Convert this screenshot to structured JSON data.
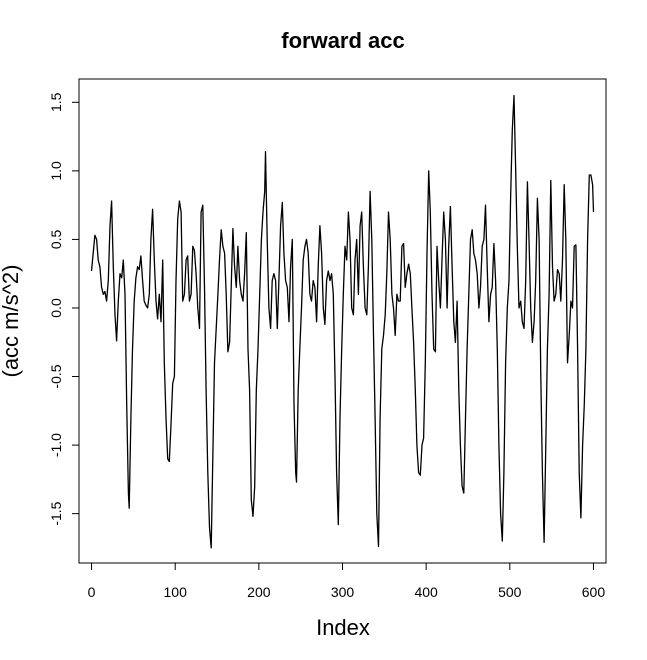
{
  "chart_data": {
    "type": "line",
    "title": "forward acc",
    "xlabel": "Index",
    "ylabel": "(acc m/s^2)",
    "xlim": [
      -15,
      615
    ],
    "ylim": [
      -1.86,
      1.67
    ],
    "xticks": [
      0,
      100,
      200,
      300,
      400,
      500,
      600
    ],
    "yticks": [
      -1.5,
      -1.0,
      -0.5,
      0.0,
      0.5,
      1.0,
      1.5
    ],
    "xtick_labels": [
      "0",
      "100",
      "200",
      "300",
      "400",
      "500",
      "600"
    ],
    "ytick_labels": [
      "-1.5",
      "-1.0",
      "-0.5",
      "0.0",
      "0.5",
      "1.0",
      "1.5"
    ],
    "grid": false,
    "line_color": "#000000",
    "series": [
      {
        "points": [
          [
            0,
            0.27
          ],
          [
            2,
            0.4
          ],
          [
            4,
            0.53
          ],
          [
            6,
            0.5
          ],
          [
            8,
            0.35
          ],
          [
            10,
            0.3
          ],
          [
            12,
            0.15
          ],
          [
            14,
            0.1
          ],
          [
            16,
            0.12
          ],
          [
            18,
            0.05
          ],
          [
            20,
            0.2
          ],
          [
            22,
            0.6
          ],
          [
            24,
            0.78
          ],
          [
            26,
            0.3
          ],
          [
            28,
            -0.05
          ],
          [
            30,
            -0.24
          ],
          [
            32,
            0.05
          ],
          [
            34,
            0.25
          ],
          [
            36,
            0.22
          ],
          [
            38,
            0.35
          ],
          [
            40,
            0.1
          ],
          [
            42,
            -0.7
          ],
          [
            44,
            -1.35
          ],
          [
            45,
            -1.46
          ],
          [
            47,
            -0.8
          ],
          [
            49,
            -0.3
          ],
          [
            51,
            0.05
          ],
          [
            53,
            0.22
          ],
          [
            55,
            0.3
          ],
          [
            57,
            0.28
          ],
          [
            59,
            0.38
          ],
          [
            61,
            0.2
          ],
          [
            63,
            0.05
          ],
          [
            65,
            0.02
          ],
          [
            67,
            0.0
          ],
          [
            69,
            0.1
          ],
          [
            71,
            0.5
          ],
          [
            73,
            0.72
          ],
          [
            75,
            0.35
          ],
          [
            77,
            0.05
          ],
          [
            79,
            -0.08
          ],
          [
            81,
            0.1
          ],
          [
            83,
            -0.1
          ],
          [
            85,
            0.35
          ],
          [
            87,
            -0.4
          ],
          [
            89,
            -0.8
          ],
          [
            91,
            -1.1
          ],
          [
            93,
            -1.12
          ],
          [
            95,
            -0.85
          ],
          [
            97,
            -0.55
          ],
          [
            99,
            -0.5
          ],
          [
            101,
            0.2
          ],
          [
            103,
            0.65
          ],
          [
            105,
            0.78
          ],
          [
            107,
            0.7
          ],
          [
            109,
            0.05
          ],
          [
            111,
            0.1
          ],
          [
            113,
            0.35
          ],
          [
            115,
            0.38
          ],
          [
            117,
            0.05
          ],
          [
            119,
            0.1
          ],
          [
            121,
            0.45
          ],
          [
            123,
            0.42
          ],
          [
            125,
            0.25
          ],
          [
            127,
            0.0
          ],
          [
            129,
            -0.15
          ],
          [
            131,
            0.7
          ],
          [
            133,
            0.75
          ],
          [
            135,
            0.15
          ],
          [
            137,
            -0.6
          ],
          [
            139,
            -1.2
          ],
          [
            141,
            -1.6
          ],
          [
            143,
            -1.75
          ],
          [
            145,
            -1.1
          ],
          [
            147,
            -0.4
          ],
          [
            149,
            -0.15
          ],
          [
            151,
            0.1
          ],
          [
            153,
            0.35
          ],
          [
            155,
            0.57
          ],
          [
            157,
            0.45
          ],
          [
            159,
            0.4
          ],
          [
            161,
            0.1
          ],
          [
            163,
            -0.32
          ],
          [
            165,
            -0.25
          ],
          [
            167,
            0.15
          ],
          [
            169,
            0.58
          ],
          [
            171,
            0.3
          ],
          [
            173,
            0.15
          ],
          [
            175,
            0.45
          ],
          [
            177,
            0.2
          ],
          [
            179,
            0.1
          ],
          [
            181,
            0.05
          ],
          [
            183,
            0.25
          ],
          [
            185,
            0.55
          ],
          [
            187,
            -0.3
          ],
          [
            189,
            -0.6
          ],
          [
            191,
            -1.4
          ],
          [
            193,
            -1.52
          ],
          [
            195,
            -1.3
          ],
          [
            197,
            -0.6
          ],
          [
            199,
            -0.3
          ],
          [
            201,
            0.1
          ],
          [
            203,
            0.5
          ],
          [
            205,
            0.7
          ],
          [
            207,
            0.85
          ],
          [
            208,
            1.14
          ],
          [
            210,
            0.5
          ],
          [
            212,
            0.0
          ],
          [
            214,
            -0.15
          ],
          [
            216,
            0.2
          ],
          [
            218,
            0.25
          ],
          [
            220,
            0.2
          ],
          [
            222,
            -0.15
          ],
          [
            224,
            0.2
          ],
          [
            226,
            0.6
          ],
          [
            228,
            0.77
          ],
          [
            230,
            0.4
          ],
          [
            232,
            0.2
          ],
          [
            234,
            0.15
          ],
          [
            236,
            -0.1
          ],
          [
            238,
            0.3
          ],
          [
            240,
            0.5
          ],
          [
            242,
            -0.7
          ],
          [
            244,
            -1.2
          ],
          [
            245,
            -1.27
          ],
          [
            247,
            -0.6
          ],
          [
            249,
            -0.3
          ],
          [
            251,
            0.0
          ],
          [
            253,
            0.35
          ],
          [
            255,
            0.45
          ],
          [
            257,
            0.5
          ],
          [
            259,
            0.4
          ],
          [
            261,
            0.1
          ],
          [
            263,
            0.05
          ],
          [
            265,
            0.2
          ],
          [
            267,
            0.15
          ],
          [
            269,
            -0.1
          ],
          [
            271,
            0.3
          ],
          [
            273,
            0.6
          ],
          [
            275,
            0.4
          ],
          [
            277,
            0.0
          ],
          [
            279,
            -0.12
          ],
          [
            281,
            0.2
          ],
          [
            283,
            0.27
          ],
          [
            285,
            0.2
          ],
          [
            287,
            0.25
          ],
          [
            289,
            0.1
          ],
          [
            291,
            -0.5
          ],
          [
            293,
            -1.2
          ],
          [
            295,
            -1.58
          ],
          [
            297,
            -0.8
          ],
          [
            299,
            -0.3
          ],
          [
            301,
            0.1
          ],
          [
            303,
            0.45
          ],
          [
            305,
            0.35
          ],
          [
            307,
            0.7
          ],
          [
            309,
            0.5
          ],
          [
            311,
            0.0
          ],
          [
            313,
            -0.05
          ],
          [
            315,
            0.35
          ],
          [
            317,
            0.5
          ],
          [
            319,
            0.1
          ],
          [
            321,
            0.6
          ],
          [
            323,
            0.7
          ],
          [
            325,
            0.3
          ],
          [
            327,
            0.0
          ],
          [
            329,
            -0.05
          ],
          [
            331,
            0.3
          ],
          [
            333,
            0.85
          ],
          [
            335,
            0.5
          ],
          [
            337,
            -0.2
          ],
          [
            339,
            -0.8
          ],
          [
            341,
            -1.5
          ],
          [
            343,
            -1.74
          ],
          [
            345,
            -0.8
          ],
          [
            347,
            -0.3
          ],
          [
            349,
            -0.2
          ],
          [
            351,
            -0.05
          ],
          [
            353,
            0.25
          ],
          [
            355,
            0.7
          ],
          [
            357,
            0.5
          ],
          [
            359,
            0.1
          ],
          [
            361,
            0.0
          ],
          [
            363,
            -0.2
          ],
          [
            365,
            0.1
          ],
          [
            367,
            0.05
          ],
          [
            369,
            0.05
          ],
          [
            371,
            0.45
          ],
          [
            373,
            0.47
          ],
          [
            375,
            0.15
          ],
          [
            377,
            0.25
          ],
          [
            379,
            0.32
          ],
          [
            381,
            0.25
          ],
          [
            383,
            0.0
          ],
          [
            385,
            -0.25
          ],
          [
            387,
            -0.6
          ],
          [
            389,
            -1.0
          ],
          [
            391,
            -1.2
          ],
          [
            393,
            -1.22
          ],
          [
            395,
            -1.0
          ],
          [
            397,
            -0.95
          ],
          [
            399,
            -0.4
          ],
          [
            401,
            0.4
          ],
          [
            403,
            1.0
          ],
          [
            405,
            0.7
          ],
          [
            407,
            0.1
          ],
          [
            409,
            -0.3
          ],
          [
            411,
            -0.32
          ],
          [
            413,
            0.45
          ],
          [
            415,
            0.2
          ],
          [
            417,
            0.0
          ],
          [
            419,
            0.35
          ],
          [
            421,
            0.7
          ],
          [
            423,
            0.5
          ],
          [
            425,
            0.0
          ],
          [
            427,
            0.45
          ],
          [
            429,
            0.74
          ],
          [
            431,
            0.3
          ],
          [
            433,
            -0.1
          ],
          [
            435,
            -0.25
          ],
          [
            437,
            0.05
          ],
          [
            439,
            -0.6
          ],
          [
            441,
            -1.0
          ],
          [
            443,
            -1.3
          ],
          [
            445,
            -1.35
          ],
          [
            447,
            -0.8
          ],
          [
            449,
            -0.3
          ],
          [
            451,
            0.1
          ],
          [
            453,
            0.5
          ],
          [
            455,
            0.57
          ],
          [
            457,
            0.4
          ],
          [
            459,
            0.35
          ],
          [
            461,
            0.25
          ],
          [
            463,
            0.0
          ],
          [
            465,
            0.15
          ],
          [
            467,
            0.45
          ],
          [
            469,
            0.5
          ],
          [
            471,
            0.75
          ],
          [
            473,
            0.3
          ],
          [
            475,
            -0.1
          ],
          [
            477,
            0.1
          ],
          [
            479,
            0.15
          ],
          [
            481,
            0.47
          ],
          [
            483,
            0.2
          ],
          [
            485,
            -0.3
          ],
          [
            487,
            -1.0
          ],
          [
            489,
            -1.5
          ],
          [
            491,
            -1.7
          ],
          [
            493,
            -1.2
          ],
          [
            495,
            -0.4
          ],
          [
            497,
            0.0
          ],
          [
            499,
            0.2
          ],
          [
            501,
            0.8
          ],
          [
            503,
            1.3
          ],
          [
            505,
            1.55
          ],
          [
            507,
            1.0
          ],
          [
            509,
            0.45
          ],
          [
            511,
            0.0
          ],
          [
            513,
            0.05
          ],
          [
            515,
            -0.1
          ],
          [
            517,
            -0.15
          ],
          [
            519,
            0.2
          ],
          [
            521,
            0.92
          ],
          [
            523,
            0.5
          ],
          [
            525,
            0.0
          ],
          [
            527,
            -0.25
          ],
          [
            529,
            -0.1
          ],
          [
            531,
            0.2
          ],
          [
            533,
            0.8
          ],
          [
            535,
            0.5
          ],
          [
            537,
            -0.5
          ],
          [
            539,
            -1.2
          ],
          [
            541,
            -1.71
          ],
          [
            543,
            -1.0
          ],
          [
            545,
            -0.3
          ],
          [
            547,
            0.1
          ],
          [
            549,
            0.93
          ],
          [
            551,
            0.3
          ],
          [
            553,
            0.05
          ],
          [
            555,
            0.1
          ],
          [
            557,
            0.28
          ],
          [
            559,
            0.25
          ],
          [
            561,
            0.05
          ],
          [
            563,
            0.35
          ],
          [
            565,
            0.9
          ],
          [
            567,
            0.5
          ],
          [
            569,
            -0.4
          ],
          [
            571,
            -0.2
          ],
          [
            573,
            0.05
          ],
          [
            575,
            0.0
          ],
          [
            577,
            0.45
          ],
          [
            579,
            0.46
          ],
          [
            581,
            -0.3
          ],
          [
            583,
            -1.2
          ],
          [
            585,
            -1.53
          ],
          [
            587,
            -1.0
          ],
          [
            589,
            -0.7
          ],
          [
            591,
            -0.3
          ],
          [
            593,
            0.5
          ],
          [
            595,
            0.97
          ],
          [
            597,
            0.97
          ],
          [
            599,
            0.9
          ],
          [
            600,
            0.7
          ]
        ]
      }
    ]
  }
}
